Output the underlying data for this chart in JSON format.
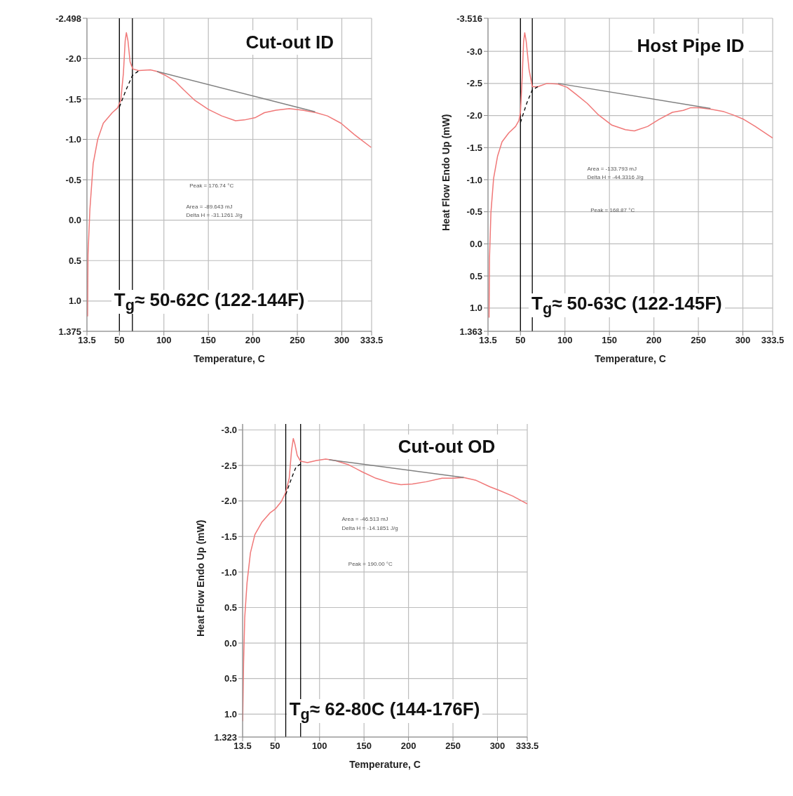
{
  "chart_data": [
    {
      "type": "line",
      "title": "Cut-out ID",
      "xlabel": "Temperature, C",
      "xlim": [
        13.5,
        333.5
      ],
      "xticks": [
        13.5,
        50,
        100,
        150,
        200,
        250,
        300,
        333.5
      ],
      "ylim": [
        1.375,
        -2.498
      ],
      "yticks": [
        -2.498,
        {
          "value": -2,
          "label": "-2.0"
        },
        -1.5,
        {
          "value": -1,
          "label": "-1.0"
        },
        -0.5,
        {
          "value": 0,
          "label": "0.0"
        },
        0.5,
        {
          "value": 1,
          "label": "1.0"
        },
        1.375
      ],
      "grid": true,
      "marker": "none",
      "annotations": [
        "Peak = 176.74 °C",
        "Area = -89.643 mJ",
        "Delta H = -31.1261 J/g",
        "T$_{g}$≈ 50-62C (122-144F)"
      ],
      "ref_lines": [
        {
          "axis": "x",
          "value": 50,
          "color": "#000000"
        },
        {
          "axis": "x",
          "value": 64.6,
          "color": "#000000"
        }
      ],
      "series": [
        {
          "color": "#f07878",
          "line_style": "solid",
          "x": [
            14.2,
            14.7,
            16.8,
            20.5,
            25.6,
            31.9,
            42,
            48,
            51.5,
            54.5,
            56.5,
            57.8,
            59.6,
            62,
            65,
            72,
            84.8,
            92.3,
            102,
            112.5,
            122.5,
            135,
            150,
            165,
            180.5,
            190.5,
            203,
            213,
            226,
            241,
            256,
            271,
            283.8,
            299,
            314,
            333
          ],
          "values": [
            1.19,
            0.43,
            -0.13,
            -0.7,
            -1.0,
            -1.2,
            -1.33,
            -1.39,
            -1.48,
            -1.82,
            -2.22,
            -2.32,
            -2.22,
            -1.96,
            -1.87,
            -1.85,
            -1.86,
            -1.84,
            -1.79,
            -1.72,
            -1.61,
            -1.48,
            -1.37,
            -1.29,
            -1.23,
            -1.24,
            -1.27,
            -1.33,
            -1.36,
            -1.38,
            -1.36,
            -1.33,
            -1.29,
            -1.2,
            -1.06,
            -0.9
          ]
        },
        {
          "color": "#808080",
          "line_style": "solid",
          "x": [
            92.3,
            270
          ],
          "values": [
            -1.84,
            -1.34
          ]
        },
        {
          "color": "#000000",
          "line_style": "dashed",
          "x": [
            50,
            57,
            64.6,
            72
          ],
          "values": [
            -1.4,
            -1.6,
            -1.79,
            -1.85
          ]
        }
      ]
    },
    {
      "type": "line",
      "title": "Host Pipe ID",
      "xlabel": "Temperature, C",
      "ylabel": "Heat Flow Endo Up (mW)",
      "xlim": [
        13.5,
        333.5
      ],
      "xticks": [
        13.5,
        50,
        100,
        150,
        200,
        250,
        300,
        333.5
      ],
      "ylim": [
        1.363,
        -3.516
      ],
      "yticks": [
        -3.516,
        {
          "value": -3,
          "label": "-3.0"
        },
        -2.5,
        {
          "value": -2,
          "label": "-2.0"
        },
        -1.5,
        {
          "value": -1,
          "label": "-1.0"
        },
        -0.5,
        {
          "value": 0,
          "label": "0.0"
        },
        0.5,
        {
          "value": 1,
          "label": "1.0"
        },
        1.363
      ],
      "grid": true,
      "marker": "none",
      "annotations": [
        "Area = -133.793 mJ",
        "Delta H = -44.3316 J/g",
        "Peak = 168.87 °C",
        "T$_{g}$≈ 50-63C (122-145F)"
      ],
      "ref_lines": [
        {
          "axis": "x",
          "value": 50,
          "color": "#000000"
        },
        {
          "axis": "x",
          "value": 63.3,
          "color": "#000000"
        }
      ],
      "series": [
        {
          "color": "#f07878",
          "line_style": "solid",
          "x": [
            14.7,
            15.2,
            16.8,
            19.8,
            24.3,
            29.3,
            36.9,
            44.5,
            48.2,
            50,
            52,
            53.5,
            54.8,
            56.5,
            59.6,
            63.3,
            69.6,
            79.7,
            92.3,
            102.4,
            112.5,
            125,
            137.7,
            152.8,
            167.9,
            178,
            193,
            205.7,
            220.8,
            233,
            241,
            251,
            263.6,
            278.7,
            288.8,
            301,
            314,
            333.5
          ],
          "values": [
            1.15,
            0.22,
            -0.49,
            -1.02,
            -1.37,
            -1.59,
            -1.73,
            -1.83,
            -1.92,
            -2.05,
            -2.61,
            -3.15,
            -3.29,
            -3.15,
            -2.72,
            -2.45,
            -2.45,
            -2.5,
            -2.49,
            -2.44,
            -2.33,
            -2.19,
            -2.01,
            -1.85,
            -1.78,
            -1.76,
            -1.83,
            -1.94,
            -2.05,
            -2.08,
            -2.12,
            -2.12,
            -2.1,
            -2.06,
            -2.01,
            -1.94,
            -1.83,
            -1.65
          ]
        },
        {
          "color": "#808080",
          "line_style": "solid",
          "x": [
            92.3,
            263.6
          ],
          "values": [
            -2.5,
            -2.11
          ]
        },
        {
          "color": "#000000",
          "line_style": "dashed",
          "x": [
            50,
            57,
            63.3,
            69.6
          ],
          "values": [
            -1.89,
            -2.19,
            -2.4,
            -2.45
          ]
        }
      ]
    },
    {
      "type": "line",
      "title": "Cut-out OD",
      "xlabel": "Temperature, C",
      "ylabel": "Heat Flow Endo Up (mW)",
      "xlim": [
        13.5,
        333.5
      ],
      "xticks": [
        13.5,
        50,
        100,
        150,
        200,
        250,
        300,
        333.5
      ],
      "ylim": [
        1.323,
        -3.084
      ],
      "yticks": [
        {
          "value": -3,
          "label": "-3.0"
        },
        -2.5,
        {
          "value": -2,
          "label": "-2.0"
        },
        -1.5,
        {
          "value": -1,
          "label": "-1.0"
        },
        {
          "value": -0.5,
          "label": "0.5"
        },
        {
          "value": 0,
          "label": "0.0"
        },
        0.5,
        {
          "value": 1,
          "label": "1.0"
        },
        1.323
      ],
      "grid": true,
      "marker": "none",
      "annotations": [
        "Area = -46.513 mJ",
        "Delta H = -14.1851 J/g",
        "Peak = 190.00 °C",
        "T$_{g}$≈ 62-80C (144-176F)"
      ],
      "ref_lines": [
        {
          "axis": "x",
          "value": 62,
          "color": "#000000"
        },
        {
          "axis": "x",
          "value": 78.7,
          "color": "#000000"
        }
      ],
      "series": [
        {
          "color": "#f07878",
          "line_style": "solid",
          "x": [
            13.6,
            14.6,
            15.9,
            18.5,
            22.3,
            27.4,
            35.1,
            44.1,
            50.5,
            56.9,
            62,
            65.9,
            68.5,
            70.5,
            72.3,
            74.9,
            78.7,
            86.4,
            96.7,
            106.9,
            117.2,
            132.6,
            148,
            163.3,
            178.7,
            191.5,
            204.4,
            219.7,
            237.7,
            250.5,
            262,
            276,
            291.5,
            301.8,
            317,
            333.5
          ],
          "values": [
            1.1,
            0.29,
            -0.36,
            -0.85,
            -1.27,
            -1.53,
            -1.7,
            -1.83,
            -1.89,
            -1.99,
            -2.12,
            -2.32,
            -2.71,
            -2.88,
            -2.8,
            -2.64,
            -2.56,
            -2.54,
            -2.57,
            -2.59,
            -2.57,
            -2.51,
            -2.41,
            -2.32,
            -2.26,
            -2.23,
            -2.24,
            -2.27,
            -2.32,
            -2.32,
            -2.33,
            -2.29,
            -2.2,
            -2.15,
            -2.07,
            -1.96
          ]
        },
        {
          "color": "#808080",
          "line_style": "solid",
          "x": [
            110.8,
            262
          ],
          "values": [
            -2.58,
            -2.33
          ]
        },
        {
          "color": "#000000",
          "line_style": "dashed",
          "x": [
            62,
            68.5,
            73.6,
            81.3
          ],
          "values": [
            -2.09,
            -2.32,
            -2.48,
            -2.54
          ]
        }
      ]
    }
  ]
}
